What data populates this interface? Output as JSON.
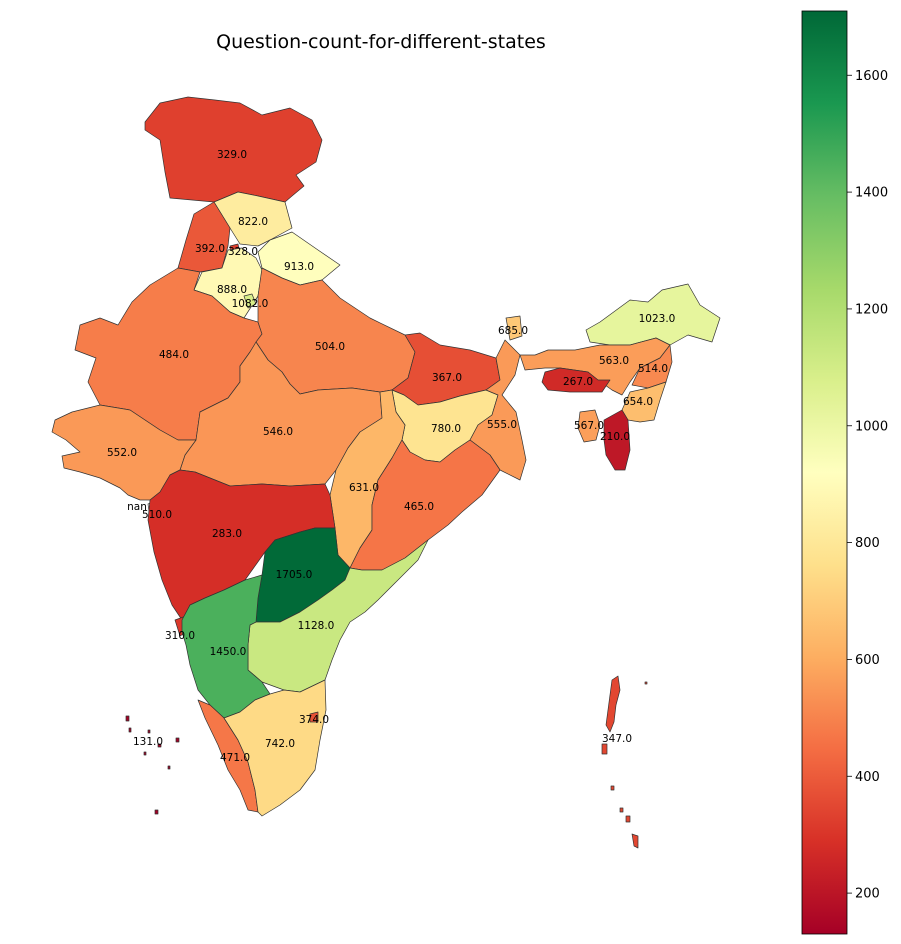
{
  "chart_data": {
    "type": "choropleth",
    "title": "Question-count-for-different-states",
    "colormap": {
      "name": "RdYlGn",
      "vmin": 130,
      "vmax": 1710,
      "stops": [
        "#a50026",
        "#d73027",
        "#f46d43",
        "#fdae61",
        "#fee08b",
        "#ffffbf",
        "#d9ef8b",
        "#a6d96a",
        "#66bd63",
        "#1a9850",
        "#006837"
      ]
    },
    "colorbar_ticks": [
      200,
      400,
      600,
      800,
      1000,
      1200,
      1400,
      1600
    ],
    "colorbar_tick_labels": [
      "200",
      "400",
      "600",
      "800",
      "1000",
      "1200",
      "1400",
      "1600"
    ],
    "regions": [
      {
        "id": "jammu-kashmir",
        "value": 329,
        "label": "329.0"
      },
      {
        "id": "himachal-pradesh",
        "value": 822,
        "label": "822.0"
      },
      {
        "id": "punjab",
        "value": 392,
        "label": "392.0"
      },
      {
        "id": "chandigarh",
        "value": 328,
        "label": "328.0"
      },
      {
        "id": "uttarakhand",
        "value": 913,
        "label": "913.0"
      },
      {
        "id": "haryana",
        "value": 888,
        "label": "888.0"
      },
      {
        "id": "delhi",
        "value": 1082,
        "label": "1082.0"
      },
      {
        "id": "rajasthan",
        "value": 484,
        "label": "484.0"
      },
      {
        "id": "uttar-pradesh",
        "value": 504,
        "label": "504.0"
      },
      {
        "id": "sikkim",
        "value": 685,
        "label": "685.0"
      },
      {
        "id": "arunachal-pradesh",
        "value": 1023,
        "label": "1023.0"
      },
      {
        "id": "bihar",
        "value": 367,
        "label": "367.0"
      },
      {
        "id": "assam",
        "value": 563,
        "label": "563.0"
      },
      {
        "id": "meghalaya",
        "value": 267,
        "label": "267.0"
      },
      {
        "id": "nagaland",
        "value": 514,
        "label": "514.0"
      },
      {
        "id": "manipur",
        "value": 654,
        "label": "654.0"
      },
      {
        "id": "tripura",
        "value": 567,
        "label": "567.0"
      },
      {
        "id": "mizoram",
        "value": 210,
        "label": "210.0"
      },
      {
        "id": "gujarat",
        "value": 552,
        "label": "552.0"
      },
      {
        "id": "madhya-pradesh",
        "value": 546,
        "label": "546.0"
      },
      {
        "id": "jharkhand",
        "value": 780,
        "label": "780.0"
      },
      {
        "id": "west-bengal",
        "value": 555,
        "label": "555.0"
      },
      {
        "id": "chhattisgarh",
        "value": 631,
        "label": "631.0"
      },
      {
        "id": "odisha",
        "value": 465,
        "label": "465.0"
      },
      {
        "id": "dadra-nagar-haveli",
        "value": null,
        "label": "nan"
      },
      {
        "id": "daman-diu",
        "value": 510,
        "label": "510.0"
      },
      {
        "id": "maharashtra",
        "value": 283,
        "label": "283.0"
      },
      {
        "id": "telangana",
        "value": 1705,
        "label": "1705.0"
      },
      {
        "id": "andhra-pradesh",
        "value": 1128,
        "label": "1128.0"
      },
      {
        "id": "goa",
        "value": 310,
        "label": "310.0"
      },
      {
        "id": "karnataka",
        "value": 1450,
        "label": "1450.0"
      },
      {
        "id": "puducherry",
        "value": 374,
        "label": "374.0"
      },
      {
        "id": "tamil-nadu",
        "value": 742,
        "label": "742.0"
      },
      {
        "id": "kerala",
        "value": 471,
        "label": "471.0"
      },
      {
        "id": "lakshadweep",
        "value": 131,
        "label": "131.0"
      },
      {
        "id": "andaman-nicobar",
        "value": 347,
        "label": "347.0"
      }
    ]
  }
}
